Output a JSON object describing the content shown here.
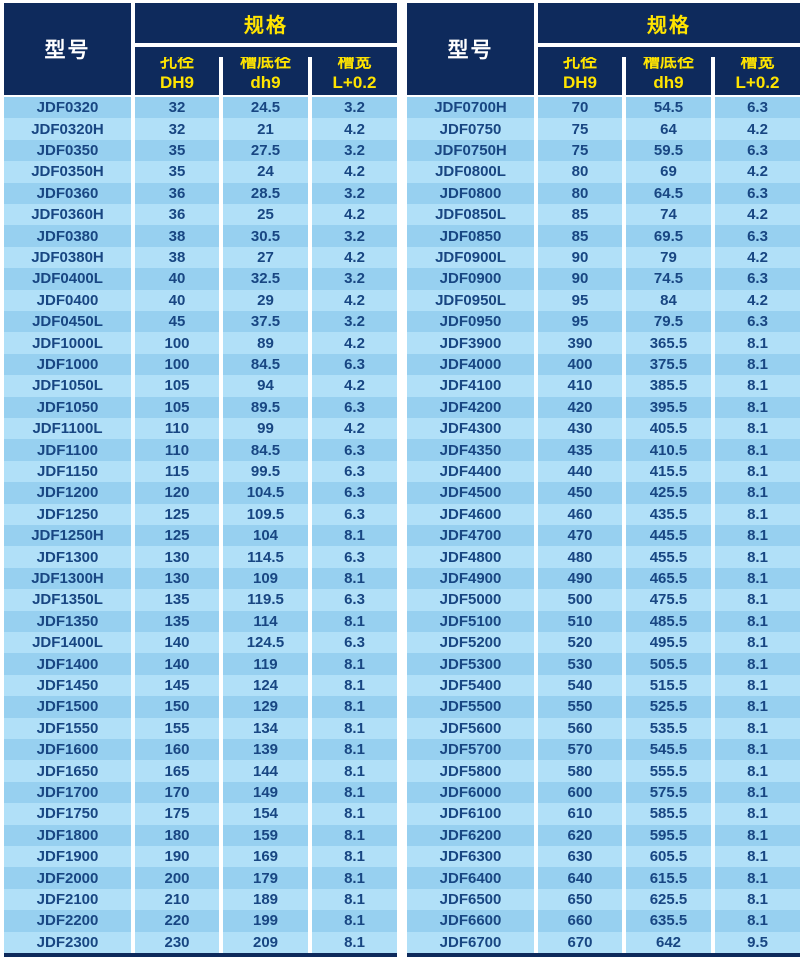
{
  "colors": {
    "header_background": "#0e2a5c",
    "header_model_text": "#ffffff",
    "header_spec_text": "#ffe400",
    "row_odd_background": "#97d0f0",
    "row_even_background": "#b1e0f8",
    "cell_text": "#184682",
    "separator": "#ffffff"
  },
  "header": {
    "model_label": "型号",
    "spec_label": "规格",
    "sub_columns": [
      "孔径\nDH9",
      "槽底径\ndh9",
      "槽宽\nL+0.2"
    ]
  },
  "tables": [
    {
      "rows": [
        [
          "JDF0320",
          "32",
          "24.5",
          "3.2"
        ],
        [
          "JDF0320H",
          "32",
          "21",
          "4.2"
        ],
        [
          "JDF0350",
          "35",
          "27.5",
          "3.2"
        ],
        [
          "JDF0350H",
          "35",
          "24",
          "4.2"
        ],
        [
          "JDF0360",
          "36",
          "28.5",
          "3.2"
        ],
        [
          "JDF0360H",
          "36",
          "25",
          "4.2"
        ],
        [
          "JDF0380",
          "38",
          "30.5",
          "3.2"
        ],
        [
          "JDF0380H",
          "38",
          "27",
          "4.2"
        ],
        [
          "JDF0400L",
          "40",
          "32.5",
          "3.2"
        ],
        [
          "JDF0400",
          "40",
          "29",
          "4.2"
        ],
        [
          "JDF0450L",
          "45",
          "37.5",
          "3.2"
        ],
        [
          "JDF1000L",
          "100",
          "89",
          "4.2"
        ],
        [
          "JDF1000",
          "100",
          "84.5",
          "6.3"
        ],
        [
          "JDF1050L",
          "105",
          "94",
          "4.2"
        ],
        [
          "JDF1050",
          "105",
          "89.5",
          "6.3"
        ],
        [
          "JDF1100L",
          "110",
          "99",
          "4.2"
        ],
        [
          "JDF1100",
          "110",
          "84.5",
          "6.3"
        ],
        [
          "JDF1150",
          "115",
          "99.5",
          "6.3"
        ],
        [
          "JDF1200",
          "120",
          "104.5",
          "6.3"
        ],
        [
          "JDF1250",
          "125",
          "109.5",
          "6.3"
        ],
        [
          "JDF1250H",
          "125",
          "104",
          "8.1"
        ],
        [
          "JDF1300",
          "130",
          "114.5",
          "6.3"
        ],
        [
          "JDF1300H",
          "130",
          "109",
          "8.1"
        ],
        [
          "JDF1350L",
          "135",
          "119.5",
          "6.3"
        ],
        [
          "JDF1350",
          "135",
          "114",
          "8.1"
        ],
        [
          "JDF1400L",
          "140",
          "124.5",
          "6.3"
        ],
        [
          "JDF1400",
          "140",
          "119",
          "8.1"
        ],
        [
          "JDF1450",
          "145",
          "124",
          "8.1"
        ],
        [
          "JDF1500",
          "150",
          "129",
          "8.1"
        ],
        [
          "JDF1550",
          "155",
          "134",
          "8.1"
        ],
        [
          "JDF1600",
          "160",
          "139",
          "8.1"
        ],
        [
          "JDF1650",
          "165",
          "144",
          "8.1"
        ],
        [
          "JDF1700",
          "170",
          "149",
          "8.1"
        ],
        [
          "JDF1750",
          "175",
          "154",
          "8.1"
        ],
        [
          "JDF1800",
          "180",
          "159",
          "8.1"
        ],
        [
          "JDF1900",
          "190",
          "169",
          "8.1"
        ],
        [
          "JDF2000",
          "200",
          "179",
          "8.1"
        ],
        [
          "JDF2100",
          "210",
          "189",
          "8.1"
        ],
        [
          "JDF2200",
          "220",
          "199",
          "8.1"
        ],
        [
          "JDF2300",
          "230",
          "209",
          "8.1"
        ]
      ]
    },
    {
      "rows": [
        [
          "JDF0700H",
          "70",
          "54.5",
          "6.3"
        ],
        [
          "JDF0750",
          "75",
          "64",
          "4.2"
        ],
        [
          "JDF0750H",
          "75",
          "59.5",
          "6.3"
        ],
        [
          "JDF0800L",
          "80",
          "69",
          "4.2"
        ],
        [
          "JDF0800",
          "80",
          "64.5",
          "6.3"
        ],
        [
          "JDF0850L",
          "85",
          "74",
          "4.2"
        ],
        [
          "JDF0850",
          "85",
          "69.5",
          "6.3"
        ],
        [
          "JDF0900L",
          "90",
          "79",
          "4.2"
        ],
        [
          "JDF0900",
          "90",
          "74.5",
          "6.3"
        ],
        [
          "JDF0950L",
          "95",
          "84",
          "4.2"
        ],
        [
          "JDF0950",
          "95",
          "79.5",
          "6.3"
        ],
        [
          "JDF3900",
          "390",
          "365.5",
          "8.1"
        ],
        [
          "JDF4000",
          "400",
          "375.5",
          "8.1"
        ],
        [
          "JDF4100",
          "410",
          "385.5",
          "8.1"
        ],
        [
          "JDF4200",
          "420",
          "395.5",
          "8.1"
        ],
        [
          "JDF4300",
          "430",
          "405.5",
          "8.1"
        ],
        [
          "JDF4350",
          "435",
          "410.5",
          "8.1"
        ],
        [
          "JDF4400",
          "440",
          "415.5",
          "8.1"
        ],
        [
          "JDF4500",
          "450",
          "425.5",
          "8.1"
        ],
        [
          "JDF4600",
          "460",
          "435.5",
          "8.1"
        ],
        [
          "JDF4700",
          "470",
          "445.5",
          "8.1"
        ],
        [
          "JDF4800",
          "480",
          "455.5",
          "8.1"
        ],
        [
          "JDF4900",
          "490",
          "465.5",
          "8.1"
        ],
        [
          "JDF5000",
          "500",
          "475.5",
          "8.1"
        ],
        [
          "JDF5100",
          "510",
          "485.5",
          "8.1"
        ],
        [
          "JDF5200",
          "520",
          "495.5",
          "8.1"
        ],
        [
          "JDF5300",
          "530",
          "505.5",
          "8.1"
        ],
        [
          "JDF5400",
          "540",
          "515.5",
          "8.1"
        ],
        [
          "JDF5500",
          "550",
          "525.5",
          "8.1"
        ],
        [
          "JDF5600",
          "560",
          "535.5",
          "8.1"
        ],
        [
          "JDF5700",
          "570",
          "545.5",
          "8.1"
        ],
        [
          "JDF5800",
          "580",
          "555.5",
          "8.1"
        ],
        [
          "JDF6000",
          "600",
          "575.5",
          "8.1"
        ],
        [
          "JDF6100",
          "610",
          "585.5",
          "8.1"
        ],
        [
          "JDF6200",
          "620",
          "595.5",
          "8.1"
        ],
        [
          "JDF6300",
          "630",
          "605.5",
          "8.1"
        ],
        [
          "JDF6400",
          "640",
          "615.5",
          "8.1"
        ],
        [
          "JDF6500",
          "650",
          "625.5",
          "8.1"
        ],
        [
          "JDF6600",
          "660",
          "635.5",
          "8.1"
        ],
        [
          "JDF6700",
          "670",
          "642",
          "9.5"
        ]
      ]
    }
  ]
}
